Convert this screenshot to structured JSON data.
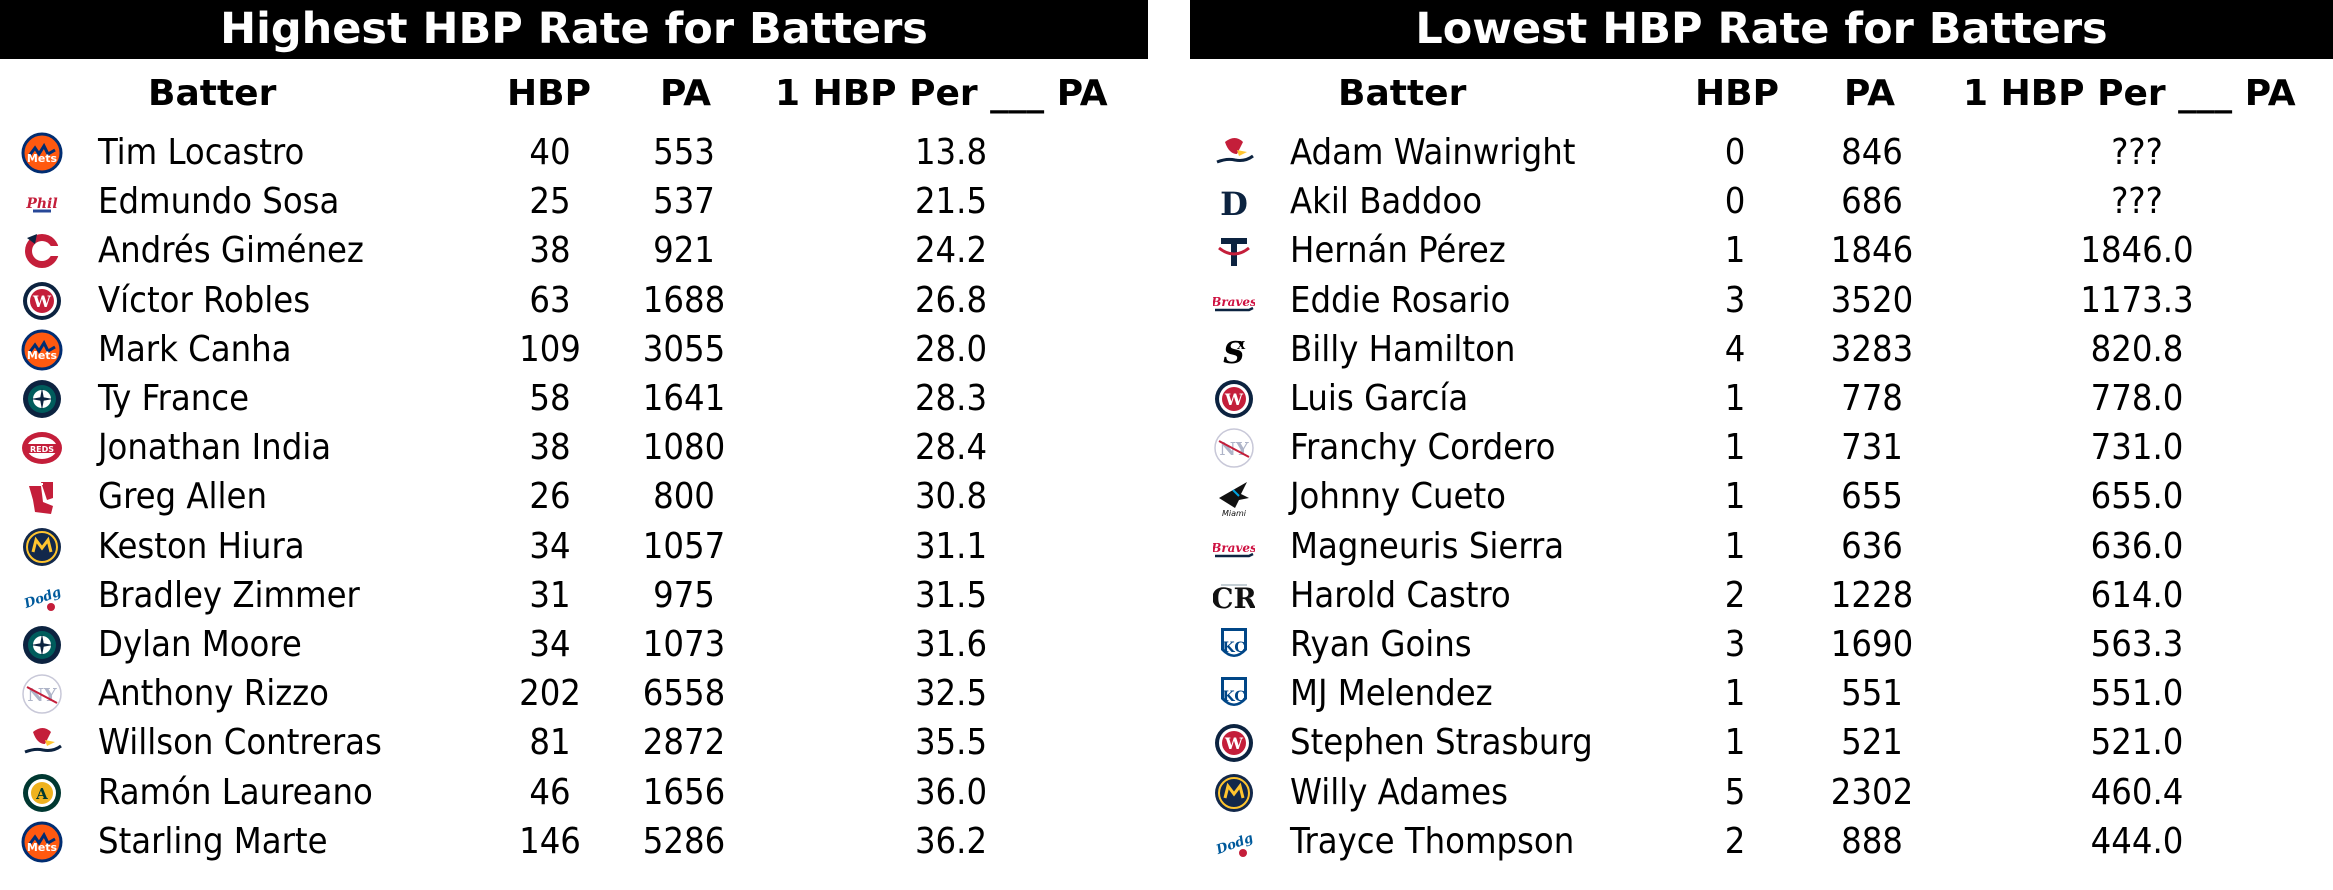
{
  "left": {
    "title": "Highest HBP Rate for Batters",
    "headers": {
      "batter": "Batter",
      "hbp": "HBP",
      "pa": "PA",
      "rate": "1 HBP Per ___ PA"
    },
    "rows": [
      {
        "team_icon": "mets-icon",
        "batter": "Tim Locastro",
        "hbp": "40",
        "pa": "553",
        "rate": "13.8"
      },
      {
        "team_icon": "phillies-icon",
        "batter": "Edmundo Sosa",
        "hbp": "25",
        "pa": "537",
        "rate": "21.5"
      },
      {
        "team_icon": "guardians-icon",
        "batter": "Andrés Giménez",
        "hbp": "38",
        "pa": "921",
        "rate": "24.2"
      },
      {
        "team_icon": "nationals-icon",
        "batter": "Víctor Robles",
        "hbp": "63",
        "pa": "1688",
        "rate": "26.8"
      },
      {
        "team_icon": "mets-icon",
        "batter": "Mark Canha",
        "hbp": "109",
        "pa": "3055",
        "rate": "28.0"
      },
      {
        "team_icon": "mariners-icon",
        "batter": "Ty France",
        "hbp": "58",
        "pa": "1641",
        "rate": "28.3"
      },
      {
        "team_icon": "reds-icon",
        "batter": "Jonathan India",
        "hbp": "38",
        "pa": "1080",
        "rate": "28.4"
      },
      {
        "team_icon": "red-sox-icon",
        "batter": "Greg Allen",
        "hbp": "26",
        "pa": "800",
        "rate": "30.8"
      },
      {
        "team_icon": "brewers-icon",
        "batter": "Keston Hiura",
        "hbp": "34",
        "pa": "1057",
        "rate": "31.1"
      },
      {
        "team_icon": "dodgers-icon",
        "batter": "Bradley Zimmer",
        "hbp": "31",
        "pa": "975",
        "rate": "31.5"
      },
      {
        "team_icon": "mariners-icon",
        "batter": "Dylan Moore",
        "hbp": "34",
        "pa": "1073",
        "rate": "31.6"
      },
      {
        "team_icon": "yankees-icon",
        "batter": "Anthony Rizzo",
        "hbp": "202",
        "pa": "6558",
        "rate": "32.5"
      },
      {
        "team_icon": "cardinals-icon",
        "batter": "Willson Contreras",
        "hbp": "81",
        "pa": "2872",
        "rate": "35.5"
      },
      {
        "team_icon": "athletics-icon",
        "batter": "Ramón Laureano",
        "hbp": "46",
        "pa": "1656",
        "rate": "36.0"
      },
      {
        "team_icon": "mets-icon",
        "batter": "Starling Marte",
        "hbp": "146",
        "pa": "5286",
        "rate": "36.2"
      }
    ]
  },
  "right": {
    "title": "Lowest HBP Rate for Batters",
    "headers": {
      "batter": "Batter",
      "hbp": "HBP",
      "pa": "PA",
      "rate": "1 HBP Per ___ PA"
    },
    "rows": [
      {
        "team_icon": "cardinals-icon",
        "batter": "Adam Wainwright",
        "hbp": "0",
        "pa": "846",
        "rate": "???"
      },
      {
        "team_icon": "tigers-icon",
        "batter": "Akil Baddoo",
        "hbp": "0",
        "pa": "686",
        "rate": "???"
      },
      {
        "team_icon": "twins-icon",
        "batter": "Hernán Pérez",
        "hbp": "1",
        "pa": "1846",
        "rate": "1846.0"
      },
      {
        "team_icon": "braves-icon",
        "batter": "Eddie Rosario",
        "hbp": "3",
        "pa": "3520",
        "rate": "1173.3"
      },
      {
        "team_icon": "white-sox-icon",
        "batter": "Billy Hamilton",
        "hbp": "4",
        "pa": "3283",
        "rate": "820.8"
      },
      {
        "team_icon": "nationals-icon",
        "batter": "Luis García",
        "hbp": "1",
        "pa": "778",
        "rate": "778.0"
      },
      {
        "team_icon": "yankees-icon",
        "batter": "Franchy Cordero",
        "hbp": "1",
        "pa": "731",
        "rate": "731.0"
      },
      {
        "team_icon": "marlins-icon",
        "batter": "Johnny Cueto",
        "hbp": "1",
        "pa": "655",
        "rate": "655.0"
      },
      {
        "team_icon": "braves-icon",
        "batter": "Magneuris Sierra",
        "hbp": "1",
        "pa": "636",
        "rate": "636.0"
      },
      {
        "team_icon": "rockies-icon",
        "batter": "Harold Castro",
        "hbp": "2",
        "pa": "1228",
        "rate": "614.0"
      },
      {
        "team_icon": "royals-icon",
        "batter": "Ryan Goins",
        "hbp": "3",
        "pa": "1690",
        "rate": "563.3"
      },
      {
        "team_icon": "royals-icon",
        "batter": "MJ Melendez",
        "hbp": "1",
        "pa": "551",
        "rate": "551.0"
      },
      {
        "team_icon": "nationals-icon",
        "batter": "Stephen Strasburg",
        "hbp": "1",
        "pa": "521",
        "rate": "521.0"
      },
      {
        "team_icon": "brewers-icon",
        "batter": "Willy Adames",
        "hbp": "5",
        "pa": "2302",
        "rate": "460.4"
      },
      {
        "team_icon": "dodgers-icon",
        "batter": "Trayce Thompson",
        "hbp": "2",
        "pa": "888",
        "rate": "444.0"
      }
    ]
  },
  "colors": {
    "banner_bg": "#000000",
    "banner_text": "#ffffff",
    "mets_orange": "#ff5910",
    "mets_blue": "#002d72",
    "red": "#c41e3a",
    "navy": "#0c2340",
    "brewers_navy": "#12284b",
    "brewers_gold": "#ffc52f",
    "mariners_teal": "#005c5c",
    "athletics_green": "#003831",
    "athletics_gold": "#efb21e",
    "dodgers_blue": "#005a9c",
    "royals_blue": "#004687",
    "marlins_teal": "#00a3e0",
    "braves_red": "#ce1141",
    "rockies_purple": "#33006f"
  }
}
